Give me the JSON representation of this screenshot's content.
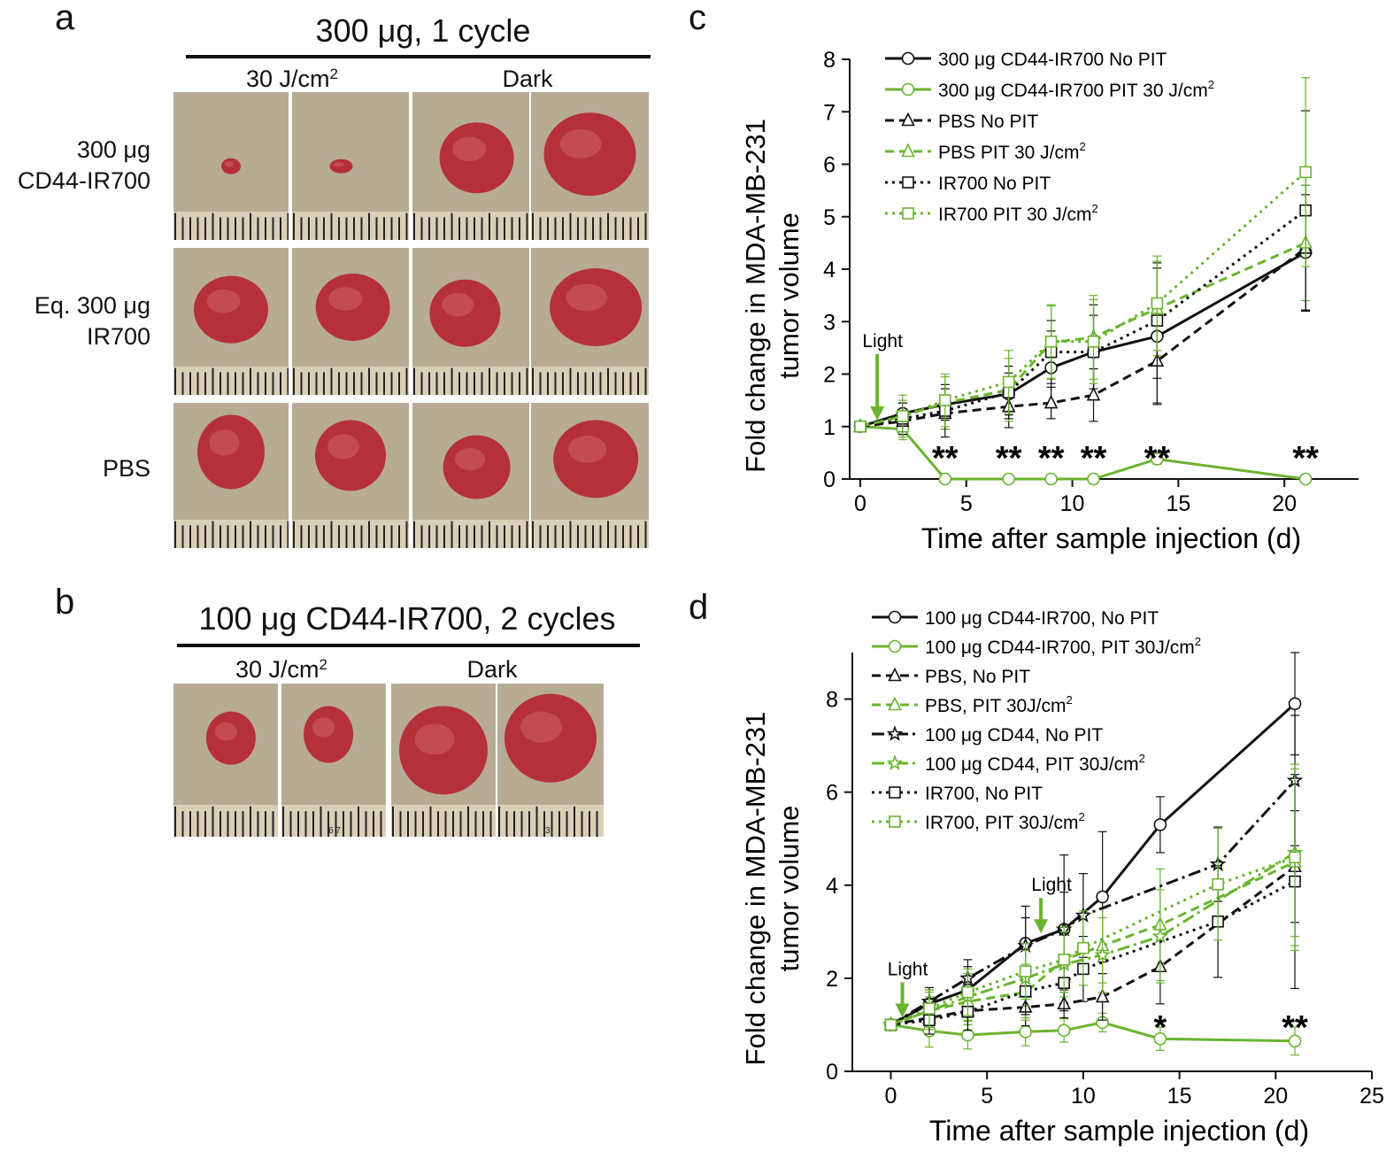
{
  "panel_a": {
    "letter": "a",
    "title": "300 μg, 1 cycle",
    "col_light": "30 J/cm",
    "col_light_sup": "2",
    "col_dark": "Dark",
    "rows": [
      {
        "line1": "300 μg",
        "line2": "CD44-IR700"
      },
      {
        "line1": "Eq. 300 μg",
        "line2": "IR700"
      },
      {
        "line1": "PBS",
        "line2": ""
      }
    ]
  },
  "panel_b": {
    "letter": "b",
    "title": "100 μg CD44-IR700, 2 cycles",
    "col_light": "30 J/cm",
    "col_light_sup": "2",
    "col_dark": "Dark",
    "ruler_digits": [
      "6",
      "7",
      "3"
    ]
  },
  "colors": {
    "black": "#111111",
    "green": "#6ab42f",
    "photo_bg": "#b8ab96",
    "tumor": "#b5303a"
  },
  "chart_data": [
    {
      "panel": "c",
      "type": "line",
      "xlabel": "Time after sample injection (d)",
      "ylabel_line1": "Fold change in MDA-MB-231",
      "ylabel_line2": "tumor volume",
      "xlim": [
        -0.5,
        23.5
      ],
      "ylim": [
        0,
        8
      ],
      "xticks": [
        0,
        5,
        10,
        15,
        20
      ],
      "yticks": [
        0,
        1,
        2,
        3,
        4,
        5,
        6,
        7,
        8
      ],
      "annotation_light": "Light",
      "light_day": 0.8,
      "significance": [
        {
          "x": 4,
          "text": "**"
        },
        {
          "x": 7,
          "text": "**"
        },
        {
          "x": 9,
          "text": "**"
        },
        {
          "x": 11,
          "text": "**"
        },
        {
          "x": 14,
          "text": "**"
        },
        {
          "x": 21,
          "text": "**"
        }
      ],
      "series": [
        {
          "name": "300 μg CD44-IR700 No PIT",
          "sup": "",
          "color": "#111111",
          "dash": "solid",
          "marker": "circle",
          "x": [
            0,
            2,
            4,
            7,
            9,
            11,
            14,
            21
          ],
          "y": [
            1,
            1.25,
            1.42,
            1.62,
            2.12,
            2.42,
            2.72,
            4.32
          ],
          "err": [
            0,
            0.2,
            0.3,
            0.4,
            0.7,
            0.9,
            1.3,
            1.1
          ]
        },
        {
          "name": "300 μg CD44-IR700 PIT 30 J/cm",
          "sup": "2",
          "color": "#6ab42f",
          "dash": "solid",
          "marker": "circle",
          "x": [
            0,
            2,
            4,
            7,
            9,
            11,
            14,
            21
          ],
          "y": [
            1,
            0.95,
            0,
            0,
            0,
            0,
            0.38,
            0
          ],
          "err": [
            0,
            0.2,
            0.05,
            0.05,
            0.05,
            0.05,
            0.1,
            0.05
          ]
        },
        {
          "name": "PBS No PIT",
          "sup": "",
          "color": "#111111",
          "dash": "dash",
          "marker": "triangle",
          "x": [
            0,
            2,
            4,
            7,
            9,
            11,
            14,
            21
          ],
          "y": [
            1,
            1.1,
            1.25,
            1.38,
            1.45,
            1.6,
            2.25,
            4.4
          ],
          "err": [
            0,
            0.2,
            0.3,
            0.4,
            0.3,
            0.5,
            0.8,
            1.2
          ]
        },
        {
          "name": "PBS PIT 30 J/cm",
          "sup": "2",
          "color": "#6ab42f",
          "dash": "dash",
          "marker": "triangle",
          "x": [
            0,
            2,
            4,
            7,
            9,
            11,
            14,
            21
          ],
          "y": [
            1,
            1.2,
            1.45,
            1.7,
            2.6,
            2.7,
            3.25,
            4.5
          ],
          "err": [
            0,
            0.3,
            0.5,
            0.6,
            0.7,
            0.8,
            0.9,
            1.1
          ]
        },
        {
          "name": "IR700 No PIT",
          "sup": "",
          "color": "#111111",
          "dash": "dot",
          "marker": "square",
          "x": [
            0,
            2,
            4,
            7,
            9,
            11,
            14,
            21
          ],
          "y": [
            1,
            1.15,
            1.3,
            1.65,
            2.42,
            2.42,
            3.02,
            5.12
          ],
          "err": [
            0,
            0.3,
            0.5,
            0.5,
            0.6,
            0.7,
            1.1,
            1.9
          ]
        },
        {
          "name": "IR700 PIT 30 J/cm",
          "sup": "2",
          "color": "#6ab42f",
          "dash": "dot",
          "marker": "square",
          "x": [
            0,
            2,
            4,
            7,
            9,
            11,
            14,
            21
          ],
          "y": [
            1,
            1.2,
            1.5,
            1.85,
            2.62,
            2.62,
            3.35,
            5.85
          ],
          "err": [
            0,
            0.4,
            0.5,
            0.6,
            0.7,
            0.8,
            0.9,
            1.8
          ]
        }
      ]
    },
    {
      "panel": "d",
      "type": "line",
      "xlabel": "Time after sample injection (d)",
      "ylabel_line1": "Fold change in MDA-MB-231",
      "ylabel_line2": "tumor volume",
      "xlim": [
        -2,
        25
      ],
      "ylim": [
        0,
        9
      ],
      "xticks": [
        0,
        5,
        10,
        15,
        20,
        25
      ],
      "yticks": [
        0,
        2,
        4,
        6,
        8
      ],
      "annotation_light": "Light",
      "light_days": [
        0.6,
        7.8
      ],
      "significance": [
        {
          "x": 14,
          "text": "*"
        },
        {
          "x": 21,
          "text": "**"
        }
      ],
      "series": [
        {
          "name": "100 μg CD44-IR700, No PIT",
          "sup": "",
          "color": "#111111",
          "dash": "solid",
          "marker": "circle",
          "x": [
            0,
            2,
            4,
            7,
            9,
            11,
            14,
            21
          ],
          "y": [
            1,
            1.45,
            1.75,
            2.75,
            3.05,
            3.75,
            5.3,
            7.9
          ],
          "err": [
            0,
            0.3,
            0.5,
            0.8,
            1.6,
            1.4,
            0.6,
            1.1
          ]
        },
        {
          "name": "100 μg CD44-IR700, PIT 30J/cm",
          "sup": "2",
          "color": "#6ab42f",
          "dash": "solid",
          "marker": "circle",
          "x": [
            0,
            2,
            4,
            7,
            9,
            11,
            14,
            21
          ],
          "y": [
            1,
            0.87,
            0.78,
            0.85,
            0.88,
            1.05,
            0.7,
            0.65
          ],
          "err": [
            0,
            0.35,
            0.3,
            0.3,
            0.25,
            0.2,
            0.25,
            0.3
          ]
        },
        {
          "name": "PBS, No PIT",
          "sup": "",
          "color": "#111111",
          "dash": "dash",
          "marker": "triangle",
          "x": [
            0,
            2,
            4,
            7,
            9,
            11,
            14,
            21
          ],
          "y": [
            1,
            1.15,
            1.3,
            1.38,
            1.45,
            1.6,
            2.25,
            4.4
          ],
          "err": [
            0,
            0.2,
            0.3,
            0.4,
            0.3,
            0.5,
            0.8,
            1.2
          ]
        },
        {
          "name": "PBS, PIT 30J/cm",
          "sup": "2",
          "color": "#6ab42f",
          "dash": "dash",
          "marker": "triangle",
          "x": [
            0,
            2,
            4,
            7,
            9,
            11,
            14,
            21
          ],
          "y": [
            1,
            1.3,
            1.5,
            1.7,
            2.4,
            2.7,
            3.15,
            4.5
          ],
          "err": [
            0,
            0.4,
            0.5,
            0.6,
            0.7,
            0.8,
            1.2,
            1.8
          ]
        },
        {
          "name": "100 μg CD44, No PIT",
          "sup": "",
          "color": "#111111",
          "dash": "longdash",
          "marker": "star",
          "x": [
            0,
            2,
            4,
            7,
            9,
            10,
            17,
            21
          ],
          "y": [
            1,
            1.5,
            2.0,
            2.7,
            3.05,
            3.35,
            4.45,
            6.25
          ],
          "err": [
            0,
            0.3,
            0.4,
            0.6,
            0.8,
            0.9,
            0.8,
            1.4
          ]
        },
        {
          "name": "100 μg CD44, PIT 30J/cm",
          "sup": "2",
          "color": "#6ab42f",
          "dash": "longdash",
          "marker": "star",
          "x": [
            0,
            2,
            4,
            7,
            9,
            11,
            14,
            21
          ],
          "y": [
            1,
            1.3,
            1.6,
            2.0,
            2.3,
            2.5,
            2.9,
            4.7
          ],
          "err": [
            0,
            0.3,
            0.5,
            0.6,
            0.7,
            0.8,
            1.0,
            1.8
          ]
        },
        {
          "name": "IR700, No PIT",
          "sup": "",
          "color": "#111111",
          "dash": "dot",
          "marker": "square",
          "x": [
            0,
            2,
            4,
            7,
            9,
            10,
            17,
            21
          ],
          "y": [
            1,
            1.1,
            1.28,
            1.72,
            1.9,
            2.2,
            3.22,
            4.08
          ],
          "err": [
            0,
            0.3,
            0.4,
            0.5,
            0.6,
            0.7,
            1.2,
            2.3
          ]
        },
        {
          "name": "IR700, PIT 30J/cm",
          "sup": "2",
          "color": "#6ab42f",
          "dash": "dot",
          "marker": "square",
          "x": [
            0,
            2,
            4,
            7,
            9,
            10,
            17,
            21
          ],
          "y": [
            1,
            1.35,
            1.7,
            2.15,
            2.4,
            2.65,
            4.02,
            4.6
          ],
          "err": [
            0,
            0.4,
            0.5,
            0.6,
            0.7,
            0.8,
            1.2,
            2.0
          ]
        }
      ]
    }
  ]
}
